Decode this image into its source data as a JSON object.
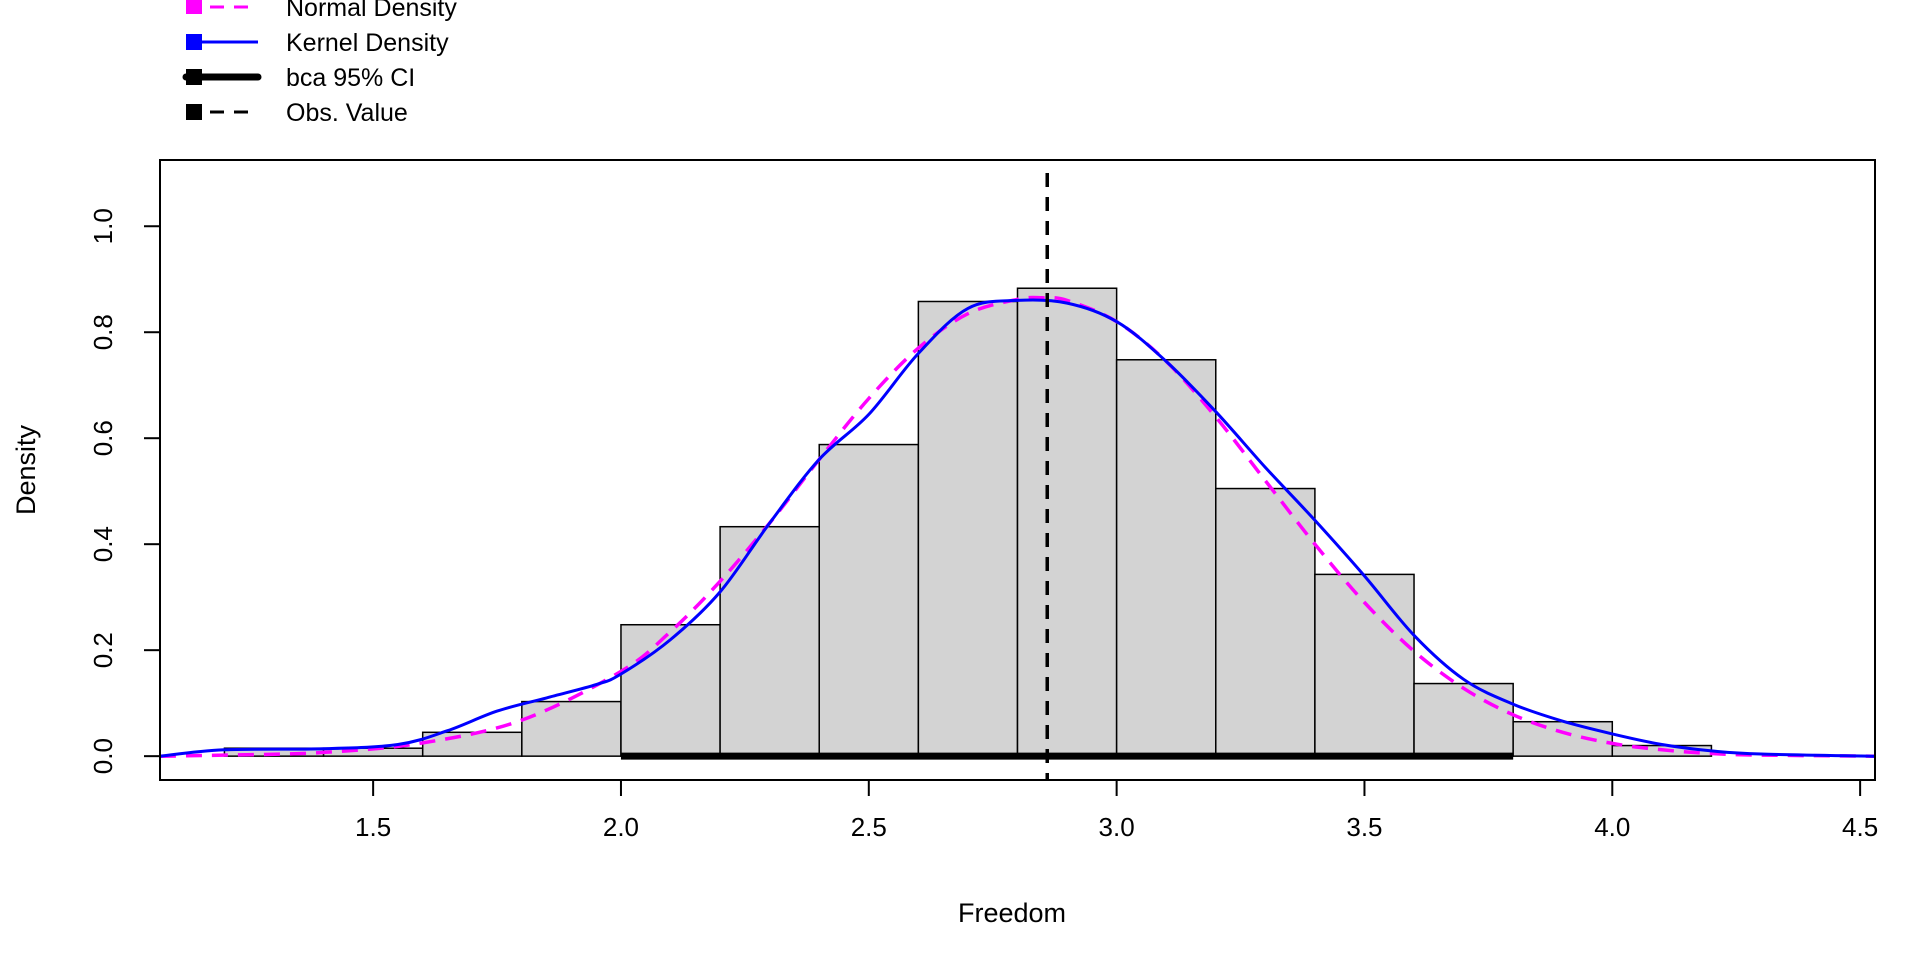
{
  "chart_data": {
    "type": "bar",
    "xlabel": "Freedom",
    "ylabel": "Density",
    "xlim": [
      1.07,
      4.53
    ],
    "ylim": [
      -0.045,
      1.125
    ],
    "x_ticks": [
      1.5,
      2.0,
      2.5,
      3.0,
      3.5,
      4.0,
      4.5
    ],
    "x_tick_labels": [
      "1.5",
      "2.0",
      "2.5",
      "3.0",
      "3.5",
      "4.0",
      "4.5"
    ],
    "y_ticks": [
      0.0,
      0.2,
      0.4,
      0.6,
      0.8,
      1.0
    ],
    "y_tick_labels": [
      "0.0",
      "0.2",
      "0.4",
      "0.6",
      "0.8",
      "1.0"
    ],
    "histogram": {
      "bin_edges": [
        1.2,
        1.4,
        1.6,
        1.8,
        2.0,
        2.2,
        2.4,
        2.6,
        2.8,
        3.0,
        3.2,
        3.4,
        3.6,
        3.8,
        4.0,
        4.2
      ],
      "densities": [
        0.015,
        0.015,
        0.045,
        0.103,
        0.248,
        0.433,
        0.588,
        0.858,
        0.883,
        0.748,
        0.505,
        0.343,
        0.137,
        0.065,
        0.02
      ],
      "fill": "#d3d3d3"
    },
    "series": [
      {
        "name": "Normal Density",
        "color": "#ff00ff",
        "style": "dashed",
        "x": [
          1.07,
          1.2,
          1.4,
          1.6,
          1.8,
          2.0,
          2.1,
          2.2,
          2.3,
          2.4,
          2.5,
          2.6,
          2.7,
          2.8,
          2.85,
          2.9,
          3.0,
          3.1,
          3.2,
          3.3,
          3.4,
          3.5,
          3.6,
          3.7,
          3.8,
          3.9,
          4.0,
          4.1,
          4.2,
          4.3,
          4.53
        ],
        "y": [
          0.0,
          0.002,
          0.007,
          0.025,
          0.068,
          0.16,
          0.235,
          0.33,
          0.44,
          0.56,
          0.675,
          0.77,
          0.835,
          0.862,
          0.865,
          0.86,
          0.82,
          0.745,
          0.64,
          0.52,
          0.4,
          0.29,
          0.198,
          0.128,
          0.078,
          0.045,
          0.024,
          0.012,
          0.005,
          0.002,
          0.0
        ]
      },
      {
        "name": "Kernel Density",
        "color": "#0000ff",
        "style": "solid",
        "x": [
          1.07,
          1.2,
          1.4,
          1.55,
          1.65,
          1.75,
          1.85,
          1.95,
          2.0,
          2.1,
          2.2,
          2.3,
          2.4,
          2.5,
          2.6,
          2.7,
          2.8,
          2.9,
          3.0,
          3.1,
          3.2,
          3.3,
          3.4,
          3.5,
          3.6,
          3.7,
          3.8,
          3.9,
          4.0,
          4.1,
          4.2,
          4.3,
          4.53
        ],
        "y": [
          0.0,
          0.012,
          0.014,
          0.022,
          0.048,
          0.085,
          0.11,
          0.135,
          0.155,
          0.22,
          0.31,
          0.44,
          0.56,
          0.645,
          0.76,
          0.845,
          0.86,
          0.855,
          0.82,
          0.745,
          0.65,
          0.545,
          0.445,
          0.34,
          0.228,
          0.145,
          0.098,
          0.066,
          0.042,
          0.022,
          0.01,
          0.004,
          0.0
        ]
      }
    ],
    "ci": {
      "name": "bca 95% CI",
      "low": 2.0,
      "high": 3.8,
      "color": "#000000"
    },
    "observed": {
      "name": "Obs. Value",
      "value": 2.86,
      "color": "#000000"
    },
    "legend": {
      "position": "top-left",
      "items": [
        {
          "label": "Normal Density",
          "color": "#ff00ff",
          "style": "dashed"
        },
        {
          "label": "Kernel Density",
          "color": "#0000ff",
          "style": "solid"
        },
        {
          "label": "bca 95% CI",
          "color": "#000000",
          "style": "thick"
        },
        {
          "label": "Obs. Value",
          "color": "#000000",
          "style": "dashed"
        }
      ]
    },
    "grid": false
  }
}
